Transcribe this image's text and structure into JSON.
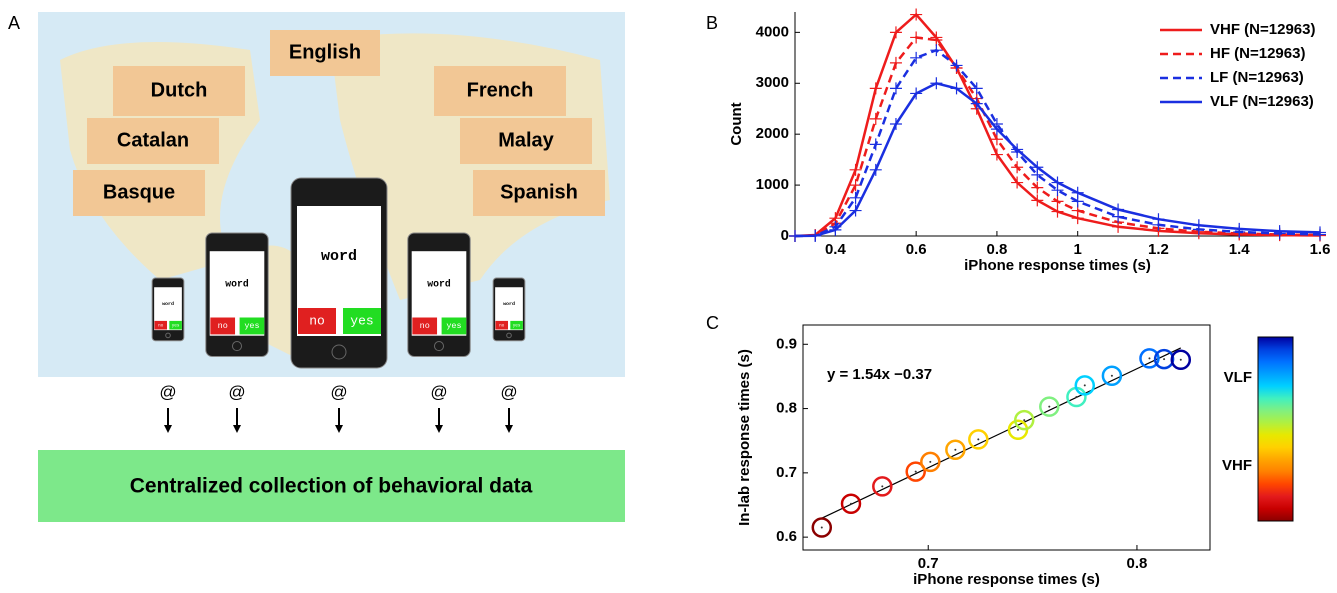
{
  "panel_a": {
    "label": "A",
    "languages": [
      "English",
      "Dutch",
      "French",
      "Catalan",
      "Malay",
      "Basque",
      "Spanish"
    ],
    "phone": {
      "word": "word",
      "no": "no",
      "yes": "yes"
    },
    "at_symbol": "@",
    "collection": "Centralized collection of behavioral data"
  },
  "chart_data": [
    {
      "type": "line",
      "label": "B",
      "xlabel": "iPhone response times (s)",
      "ylabel": "Count",
      "x": [
        0.3,
        0.35,
        0.4,
        0.45,
        0.5,
        0.55,
        0.6,
        0.65,
        0.7,
        0.75,
        0.8,
        0.85,
        0.9,
        0.95,
        1.0,
        1.1,
        1.2,
        1.3,
        1.4,
        1.5,
        1.6
      ],
      "series": [
        {
          "name": "VHF (N=12963)",
          "color": "#ee1c1c",
          "dashed": false,
          "values": [
            0,
            20,
            350,
            1300,
            2900,
            4000,
            4350,
            3900,
            3300,
            2500,
            1600,
            1050,
            700,
            480,
            350,
            180,
            100,
            55,
            30,
            18,
            10
          ]
        },
        {
          "name": "HF  (N=12963)",
          "color": "#ee1c1c",
          "dashed": true,
          "values": [
            0,
            10,
            250,
            1000,
            2300,
            3400,
            3900,
            3850,
            3300,
            2700,
            1900,
            1350,
            950,
            680,
            500,
            270,
            150,
            85,
            50,
            30,
            18
          ]
        },
        {
          "name": "LF  (N=12963)",
          "color": "#1a2fe0",
          "dashed": true,
          "values": [
            0,
            5,
            180,
            750,
            1800,
            2900,
            3500,
            3650,
            3350,
            2900,
            2200,
            1650,
            1200,
            900,
            680,
            380,
            220,
            130,
            80,
            50,
            30
          ]
        },
        {
          "name": "VLF (N=12963)",
          "color": "#1a2fe0",
          "dashed": false,
          "values": [
            0,
            3,
            120,
            500,
            1300,
            2200,
            2800,
            3000,
            2900,
            2600,
            2100,
            1700,
            1350,
            1050,
            850,
            520,
            330,
            210,
            140,
            95,
            70
          ]
        }
      ],
      "xlim": [
        0.3,
        1.6
      ],
      "xticks": [
        0.4,
        0.6,
        0.8,
        1,
        1.2,
        1.4,
        1.6
      ],
      "ylim": [
        0,
        4400
      ],
      "yticks": [
        0,
        1000,
        2000,
        3000,
        4000
      ],
      "legend": "upper right"
    },
    {
      "type": "scatter",
      "label": "C",
      "xlabel": "iPhone response times (s)",
      "ylabel": "In-lab response times (s)",
      "annotation": "y = 1.54x −0.37",
      "fit": {
        "slope": 1.54,
        "intercept": -0.37
      },
      "x": [
        0.649,
        0.663,
        0.678,
        0.694,
        0.701,
        0.713,
        0.724,
        0.743,
        0.746,
        0.758,
        0.771,
        0.775,
        0.788,
        0.806,
        0.813,
        0.821
      ],
      "values": [
        0.615,
        0.652,
        0.679,
        0.702,
        0.717,
        0.736,
        0.752,
        0.767,
        0.782,
        0.803,
        0.818,
        0.836,
        0.851,
        0.878,
        0.877,
        0.876
      ],
      "colors": [
        "#8b0000",
        "#c80000",
        "#e31a1c",
        "#ff4500",
        "#ff7f00",
        "#ffa500",
        "#ffd000",
        "#e8e800",
        "#b0f040",
        "#80f080",
        "#40f0c0",
        "#00d0ff",
        "#00a0ff",
        "#0070ff",
        "#0040e0",
        "#0000a0"
      ],
      "xlim": [
        0.64,
        0.835
      ],
      "xticks": [
        0.7,
        0.8
      ],
      "ylim": [
        0.58,
        0.93
      ],
      "yticks": [
        0.6,
        0.7,
        0.8,
        0.9
      ],
      "colorbar": {
        "labels": [
          "VLF",
          "VHF"
        ]
      }
    }
  ]
}
